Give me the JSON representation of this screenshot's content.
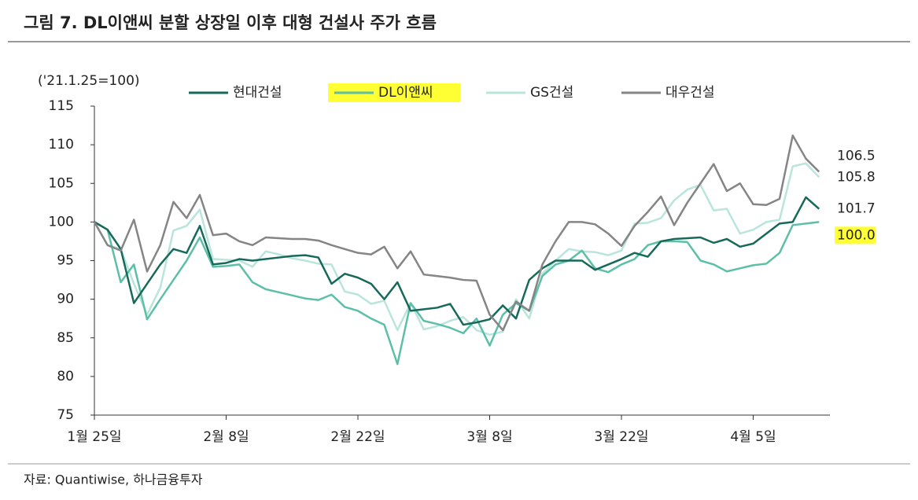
{
  "chart_data": {
    "type": "line",
    "title": "그림 7. DL이앤씨 분할 상장일 이후 대형 건설사 주가 흐름",
    "y_label": "('21.1.25=100)",
    "source": "자료: Quantiwise, 하나금융투자",
    "categories": [
      "1월 25일",
      null,
      null,
      null,
      null,
      null,
      null,
      null,
      null,
      null,
      "2월 8일",
      null,
      null,
      null,
      null,
      null,
      null,
      null,
      null,
      null,
      "2월 22일",
      null,
      null,
      null,
      null,
      null,
      null,
      null,
      null,
      null,
      "3월 8일",
      null,
      null,
      null,
      null,
      null,
      null,
      null,
      null,
      null,
      "3월 22일",
      null,
      null,
      null,
      null,
      null,
      null,
      null,
      null,
      null,
      "4월 5일",
      null,
      null,
      null,
      null,
      null
    ],
    "ylim": [
      75,
      115
    ],
    "yticks": [
      75,
      80,
      85,
      90,
      95,
      100,
      105,
      110,
      115
    ],
    "series": [
      {
        "name": "현대건설",
        "color": "#17695a",
        "values": [
          100,
          99,
          96.5,
          89.5,
          92,
          94.5,
          96.5,
          96,
          99.5,
          94.5,
          94.7,
          95.2,
          95,
          95.2,
          95.4,
          95.6,
          95.7,
          95.4,
          92,
          93.3,
          92.8,
          92,
          90,
          92.2,
          88.5,
          88.7,
          88.9,
          89.4,
          86.7,
          87,
          87.4,
          89.2,
          87.5,
          92.5,
          94,
          95,
          95,
          95,
          93.8,
          94.5,
          95.2,
          96,
          95.5,
          97.5,
          97.8,
          97.9,
          98,
          97.3,
          97.8,
          96.8,
          97.2,
          98.5,
          99.8,
          100,
          103.2,
          101.7
        ]
      },
      {
        "name": "DL이앤씨",
        "color": "#5dbfa7",
        "values": [
          100,
          99,
          92.2,
          94.5,
          87.4,
          90,
          92.5,
          95,
          98,
          94.2,
          94.3,
          94.5,
          92.2,
          91.3,
          90.9,
          90.5,
          90.1,
          89.9,
          90.6,
          89,
          88.5,
          87.5,
          86.7,
          81.6,
          89.5,
          87.2,
          86.8,
          86.3,
          85.6,
          87.5,
          84,
          88,
          89.5,
          88.5,
          93,
          94.5,
          95,
          96.3,
          94,
          93.5,
          94.5,
          95.2,
          97,
          97.5,
          97.5,
          97.4,
          95,
          94.5,
          93.6,
          94,
          94.4,
          94.6,
          96,
          99.6,
          99.8,
          100
        ],
        "value_labels": [
          null,
          null,
          null,
          null,
          null,
          null,
          null,
          null,
          null,
          null,
          null,
          null,
          null,
          null,
          null,
          null,
          null,
          null,
          null,
          null,
          null,
          null,
          null,
          null,
          null,
          null,
          null,
          null,
          null,
          null,
          null,
          null,
          null,
          null,
          null,
          null,
          null,
          null,
          null,
          null,
          null,
          null,
          null,
          null,
          null,
          null,
          null,
          null,
          null,
          null,
          null,
          null,
          null,
          null,
          null,
          "100.0"
        ]
      },
      {
        "name": "GS건설",
        "color": "#b9e5dc",
        "values": [
          100,
          97,
          96.5,
          92,
          88,
          91.5,
          98.9,
          99.5,
          101.6,
          95.2,
          95.1,
          95,
          94.2,
          96.2,
          95.8,
          95.3,
          95,
          94.6,
          94.5,
          91,
          90.6,
          89.4,
          89.8,
          86,
          89.5,
          86.1,
          86.5,
          87.2,
          87.7,
          86,
          85.4,
          85.8,
          90,
          87.5,
          93.3,
          95,
          96.5,
          96.2,
          96.1,
          95.7,
          96.3,
          99.8,
          99.9,
          100.5,
          102.8,
          104.2,
          104.8,
          101.5,
          101.7,
          98.5,
          99,
          100,
          100.3,
          107.2,
          107.6,
          105.8
        ]
      },
      {
        "name": "대우건설",
        "color": "#858585",
        "values": [
          100,
          97,
          96.3,
          100.3,
          93.6,
          97,
          102.6,
          100.5,
          103.5,
          98.3,
          98.5,
          97.5,
          97,
          98,
          97.9,
          97.8,
          97.8,
          97.6,
          97,
          96.5,
          96,
          95.8,
          96.8,
          94,
          96.2,
          93.2,
          93,
          92.8,
          92.5,
          92.4,
          88,
          86,
          89.7,
          88.5,
          94.5,
          97.5,
          100,
          100,
          99.7,
          98.5,
          96.9,
          99.5,
          101.3,
          103.3,
          99.6,
          102.5,
          105,
          107.5,
          104,
          105,
          102.3,
          102.2,
          103,
          111.2,
          108.2,
          106.5
        ]
      }
    ],
    "highlight": "#ffff33"
  }
}
